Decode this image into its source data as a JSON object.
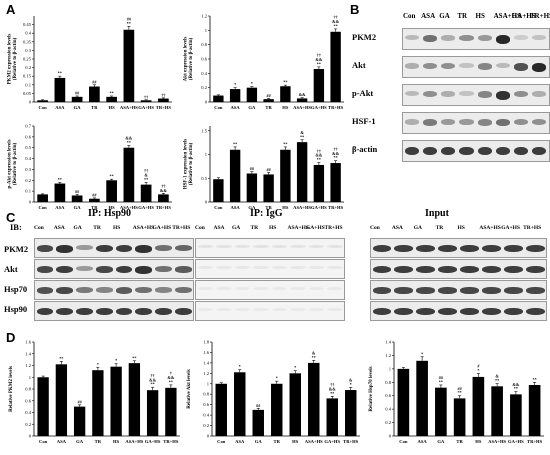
{
  "panel_labels": {
    "a": "A",
    "b": "B",
    "c": "C",
    "d": "D"
  },
  "colors": {
    "bar": "#000000",
    "axis": "#000000",
    "blot_bg": "#ececec",
    "band": "#1e1e1e"
  },
  "chart_data": [
    {
      "id": "pkm2_expr",
      "type": "bar",
      "panel": "A",
      "ylabel": "PKM2 expression levels (Relative to β-actin)",
      "categories": [
        "Con",
        "ASA",
        "GA",
        "TR",
        "HS",
        "ASA+HS",
        "GA+HS",
        "TR+HS"
      ],
      "values": [
        0.01,
        0.14,
        0.03,
        0.09,
        0.03,
        0.42,
        0.01,
        0.02
      ],
      "errors": [
        0.003,
        0.01,
        0.005,
        0.01,
        0.005,
        0.02,
        0.003,
        0.004
      ],
      "annotations": [
        "",
        "**",
        "##",
        "##",
        "**",
        "##\n**",
        "††",
        "††"
      ],
      "ylim": [
        0,
        0.5
      ],
      "yticks": [
        "0",
        "0.05",
        "0.1",
        "0.15",
        "0.2",
        "0.25",
        "0.3",
        "0.35",
        "0.4",
        "0.45"
      ],
      "ytickvals": [
        0,
        0.05,
        0.1,
        0.15,
        0.2,
        0.25,
        0.3,
        0.35,
        0.4,
        0.45
      ]
    },
    {
      "id": "akt_expr",
      "type": "bar",
      "panel": "A",
      "ylabel": "Akt expression levels (Relative to β-actin)",
      "categories": [
        "Con",
        "ASA",
        "GA",
        "TR",
        "HS",
        "ASA+HS",
        "GA+HS",
        "TR+HS"
      ],
      "values": [
        0.09,
        0.18,
        0.2,
        0.04,
        0.22,
        0.05,
        0.46,
        0.98
      ],
      "errors": [
        0.01,
        0.02,
        0.015,
        0.01,
        0.015,
        0.01,
        0.03,
        0.04
      ],
      "annotations": [
        "",
        "*",
        "*",
        "##",
        "**",
        "&&",
        "††\n&&\n**",
        "††\n&&\n**"
      ],
      "ylim": [
        0,
        1.2
      ],
      "yticks": [
        "0",
        "0.2",
        "0.4",
        "0.6",
        "0.8",
        "1",
        "1.2"
      ],
      "ytickvals": [
        0,
        0.2,
        0.4,
        0.6,
        0.8,
        1,
        1.2
      ]
    },
    {
      "id": "pakt_expr",
      "type": "bar",
      "panel": "A",
      "ylabel": "p-Akt expression levels (Relative to β-actin)",
      "categories": [
        "Con",
        "ASA",
        "GA",
        "TR",
        "HS",
        "ASA+HS",
        "GA+HS",
        "TR+HS"
      ],
      "values": [
        0.07,
        0.17,
        0.06,
        0.03,
        0.2,
        0.5,
        0.16,
        0.07
      ],
      "errors": [
        0.005,
        0.01,
        0.01,
        0.008,
        0.01,
        0.02,
        0.02,
        0.01
      ],
      "annotations": [
        "",
        "**",
        "##",
        "##",
        "**",
        "&&\n**",
        "††\n&\n**",
        "††\n&&"
      ],
      "ylim": [
        0,
        0.7
      ],
      "yticks": [
        "0",
        "0.1",
        "0.2",
        "0.3",
        "0.4",
        "0.5",
        "0.6",
        "0.7"
      ],
      "ytickvals": [
        0,
        0.1,
        0.2,
        0.3,
        0.4,
        0.5,
        0.6,
        0.7
      ]
    },
    {
      "id": "hsf1_expr",
      "type": "bar",
      "panel": "A",
      "ylabel": "HSF-1 expression levels (Relative to β-actin)",
      "categories": [
        "Con",
        "ASA",
        "GA",
        "TR",
        "HS",
        "ASA+HS",
        "GA+HS",
        "TR+HS"
      ],
      "values": [
        0.48,
        1.1,
        0.6,
        0.58,
        1.1,
        1.26,
        0.78,
        0.82
      ],
      "errors": [
        0.03,
        0.06,
        0.04,
        0.04,
        0.06,
        0.05,
        0.05,
        0.05
      ],
      "annotations": [
        "",
        "**",
        "##",
        "##",
        "**",
        "&\n**",
        "††\n&&\n**",
        "††\n&&\n**"
      ],
      "ylim": [
        0,
        1.6
      ],
      "yticks": [
        "0",
        "0.5",
        "1",
        "1.5"
      ],
      "ytickvals": [
        0,
        0.5,
        1,
        1.5
      ]
    },
    {
      "id": "rel_pkm2",
      "type": "bar",
      "panel": "D",
      "ylabel": "Relative PKM2 levels",
      "categories": [
        "Con",
        "ASA",
        "GA",
        "TR",
        "HS",
        "ASA+HS",
        "GA+HS",
        "TR+HS"
      ],
      "values": [
        1.0,
        1.22,
        0.5,
        1.12,
        1.18,
        1.24,
        0.78,
        0.82
      ],
      "errors": [
        0.02,
        0.05,
        0.03,
        0.05,
        0.05,
        0.04,
        0.05,
        0.05
      ],
      "annotations": [
        "",
        "**",
        "##",
        "*",
        "*",
        "**",
        "††\n&&\n**",
        "†\n&&\n**"
      ],
      "ylim": [
        0,
        1.6
      ],
      "yticks": [
        "0",
        "0.2",
        "0.4",
        "0.6",
        "0.8",
        "1",
        "1.2",
        "1.4",
        "1.6"
      ],
      "ytickvals": [
        0,
        0.2,
        0.4,
        0.6,
        0.8,
        1,
        1.2,
        1.4,
        1.6
      ]
    },
    {
      "id": "rel_akt",
      "type": "bar",
      "panel": "D",
      "ylabel": "Relative Akt levels",
      "categories": [
        "Con",
        "ASA",
        "GA",
        "TR",
        "HS",
        "ASA+HS",
        "GA+HS",
        "TR+HS"
      ],
      "values": [
        1.0,
        1.22,
        0.5,
        1.0,
        1.2,
        1.4,
        0.72,
        0.88
      ],
      "errors": [
        0.02,
        0.05,
        0.03,
        0.05,
        0.05,
        0.05,
        0.04,
        0.05
      ],
      "annotations": [
        "",
        "*",
        "##",
        "*",
        "*",
        "&\n**",
        "††\n&&\n**",
        "&\n*"
      ],
      "ylim": [
        0,
        1.8
      ],
      "yticks": [
        "0",
        "0.2",
        "0.4",
        "0.6",
        "0.8",
        "1",
        "1.2",
        "1.4",
        "1.6",
        "1.8"
      ],
      "ytickvals": [
        0,
        0.2,
        0.4,
        0.6,
        0.8,
        1,
        1.2,
        1.4,
        1.6,
        1.8
      ]
    },
    {
      "id": "rel_hsp70",
      "type": "bar",
      "panel": "D",
      "ylabel": "Relative Hsp70 levels",
      "categories": [
        "Con",
        "ASA",
        "GA",
        "TR",
        "HS",
        "ASA+HS",
        "GA+HS",
        "TR+HS"
      ],
      "values": [
        1.0,
        1.12,
        0.72,
        0.56,
        0.88,
        0.74,
        0.62,
        0.76
      ],
      "errors": [
        0.02,
        0.06,
        0.04,
        0.04,
        0.05,
        0.04,
        0.04,
        0.04
      ],
      "annotations": [
        "",
        "*",
        "##\n**",
        "##\n**",
        "#\n*",
        "&\n**",
        "&&\n**",
        "**"
      ],
      "ylim": [
        0,
        1.4
      ],
      "yticks": [
        "0",
        "0.2",
        "0.4",
        "0.6",
        "0.8",
        "1",
        "1.2",
        "1.4"
      ],
      "ytickvals": [
        0,
        0.2,
        0.4,
        0.6,
        0.8,
        1,
        1.2,
        1.4
      ]
    }
  ],
  "blot_b": {
    "lanes": [
      "Con",
      "ASA",
      "GA",
      "TR",
      "HS",
      "ASA+HS",
      "GA+HS",
      "TR+HS"
    ],
    "rows": [
      {
        "label": "PKM2",
        "intensity": [
          0.25,
          0.6,
          0.3,
          0.45,
          0.4,
          0.95,
          0.15,
          0.2
        ]
      },
      {
        "label": "Akt",
        "intensity": [
          0.3,
          0.45,
          0.45,
          0.2,
          0.5,
          0.25,
          0.75,
          0.95
        ]
      },
      {
        "label": "p-Akt",
        "intensity": [
          0.25,
          0.45,
          0.3,
          0.2,
          0.5,
          0.9,
          0.45,
          0.3
        ]
      },
      {
        "label": "HSF-1",
        "intensity": [
          0.3,
          0.55,
          0.4,
          0.4,
          0.5,
          0.6,
          0.45,
          0.45
        ]
      },
      {
        "label": "β-actin",
        "intensity": [
          0.85,
          0.85,
          0.85,
          0.85,
          0.85,
          0.85,
          0.85,
          0.85
        ]
      }
    ]
  },
  "blot_c": {
    "ib_label": "IB:",
    "rows": [
      "PKM2",
      "Akt",
      "Hsp70",
      "Hsp90"
    ],
    "lanes": [
      "Con",
      "ASA",
      "GA",
      "TR",
      "HS",
      "ASA+HS",
      "GA+HS",
      "TR+HS"
    ],
    "groups": [
      {
        "title": "IP: Hsp90",
        "intensity": [
          [
            0.8,
            0.9,
            0.4,
            0.85,
            0.85,
            0.9,
            0.6,
            0.65
          ],
          [
            0.8,
            0.85,
            0.4,
            0.8,
            0.85,
            0.9,
            0.6,
            0.7
          ],
          [
            0.75,
            0.8,
            0.55,
            0.5,
            0.7,
            0.6,
            0.5,
            0.6
          ],
          [
            0.85,
            0.85,
            0.85,
            0.85,
            0.85,
            0.85,
            0.85,
            0.85
          ]
        ]
      },
      {
        "title": "IP: IgG",
        "intensity": [
          [
            0.08,
            0.08,
            0.08,
            0.08,
            0.08,
            0.08,
            0.08,
            0.08
          ],
          [
            0.06,
            0.06,
            0.06,
            0.06,
            0.06,
            0.06,
            0.06,
            0.06
          ],
          [
            0.05,
            0.05,
            0.05,
            0.05,
            0.05,
            0.05,
            0.05,
            0.05
          ],
          [
            0.05,
            0.05,
            0.05,
            0.05,
            0.05,
            0.05,
            0.05,
            0.05
          ]
        ]
      },
      {
        "title": "Input",
        "intensity": [
          [
            0.85,
            0.85,
            0.85,
            0.85,
            0.85,
            0.85,
            0.85,
            0.85
          ],
          [
            0.85,
            0.85,
            0.85,
            0.85,
            0.85,
            0.85,
            0.85,
            0.85
          ],
          [
            0.8,
            0.8,
            0.8,
            0.8,
            0.8,
            0.8,
            0.8,
            0.8
          ],
          [
            0.85,
            0.85,
            0.85,
            0.85,
            0.85,
            0.85,
            0.85,
            0.85
          ]
        ]
      }
    ]
  }
}
